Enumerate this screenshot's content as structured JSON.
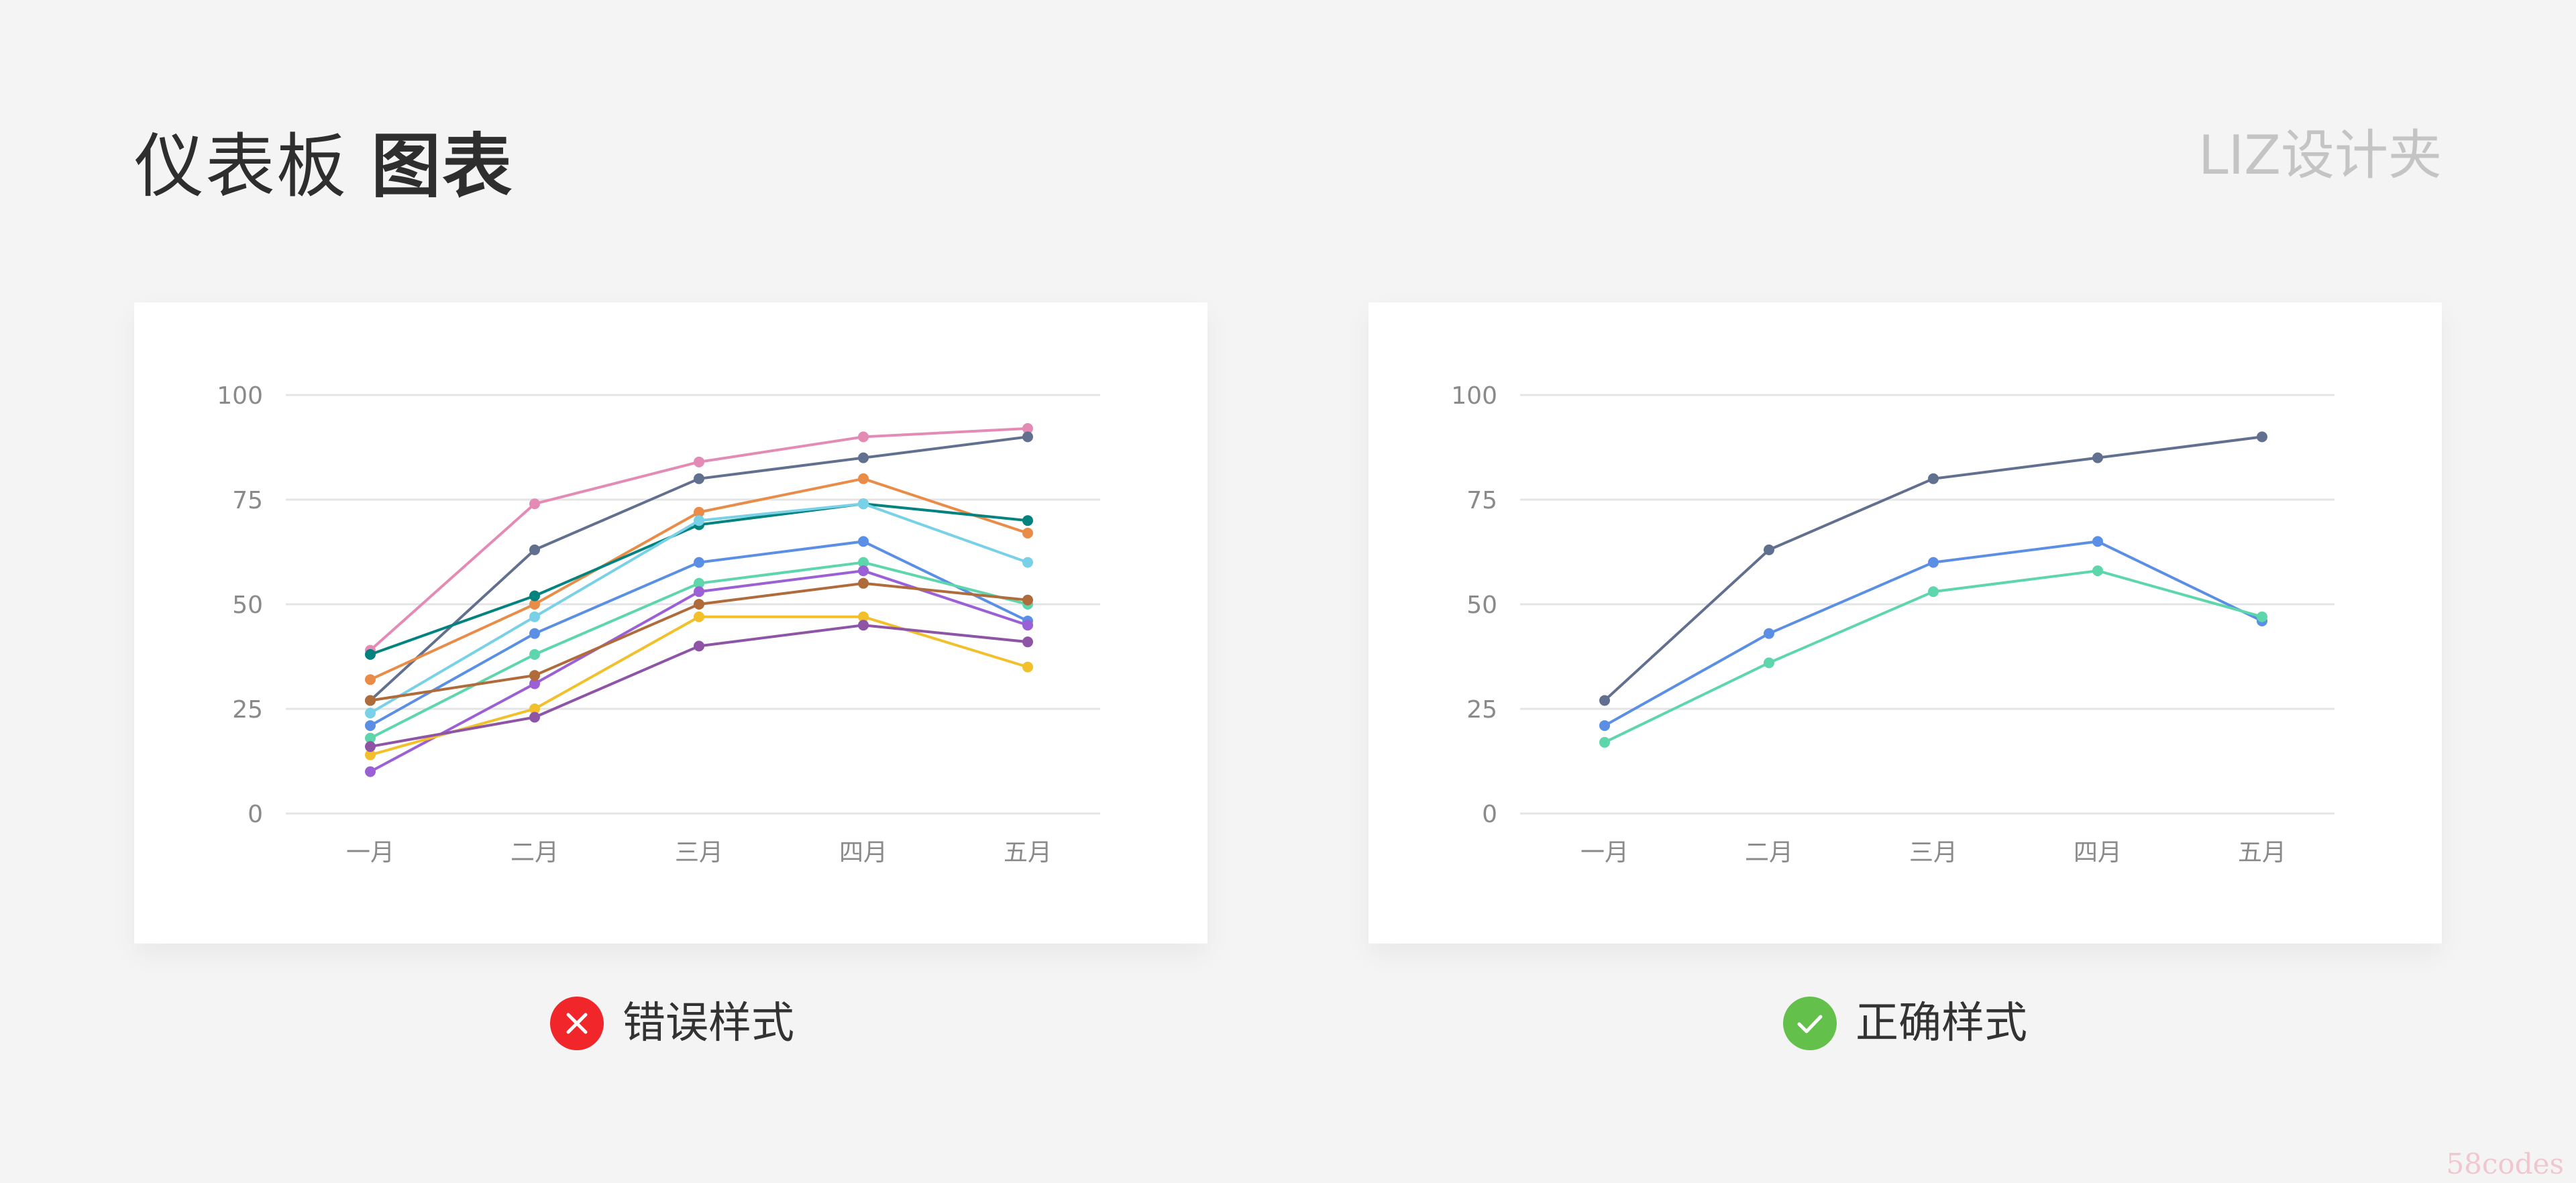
{
  "header": {
    "title_light": "仪表板",
    "title_bold": "图表",
    "brand": "LIZ设计夹"
  },
  "chart_data": [
    {
      "type": "line",
      "categories": [
        "一月",
        "二月",
        "三月",
        "四月",
        "五月"
      ],
      "ylim": [
        0,
        100
      ],
      "yticks": [
        "0",
        "25",
        "50",
        "75",
        "100"
      ],
      "grid": true,
      "series": [
        {
          "color": "#e48bb5",
          "values": [
            39,
            74,
            84,
            90,
            92
          ]
        },
        {
          "color": "#62708f",
          "values": [
            27,
            63,
            80,
            85,
            90
          ]
        },
        {
          "color": "#e98c48",
          "values": [
            32,
            50,
            72,
            80,
            67
          ]
        },
        {
          "color": "#02837f",
          "values": [
            38,
            52,
            69,
            74,
            70
          ]
        },
        {
          "color": "#78d1e6",
          "values": [
            24,
            47,
            70,
            74,
            60
          ]
        },
        {
          "color": "#5b8fe6",
          "values": [
            21,
            43,
            60,
            65,
            46
          ]
        },
        {
          "color": "#5dd6ab",
          "values": [
            18,
            38,
            55,
            60,
            50
          ]
        },
        {
          "color": "#9b5fd6",
          "values": [
            10,
            31,
            53,
            58,
            45
          ]
        },
        {
          "color": "#b06b3a",
          "values": [
            27,
            33,
            50,
            55,
            51
          ]
        },
        {
          "color": "#f1c02b",
          "values": [
            14,
            25,
            47,
            47,
            35
          ]
        },
        {
          "color": "#8e54a6",
          "values": [
            16,
            23,
            40,
            45,
            41
          ]
        }
      ]
    },
    {
      "type": "line",
      "categories": [
        "一月",
        "二月",
        "三月",
        "四月",
        "五月"
      ],
      "ylim": [
        0,
        100
      ],
      "yticks": [
        "0",
        "25",
        "50",
        "75",
        "100"
      ],
      "grid": true,
      "series": [
        {
          "color": "#62708f",
          "values": [
            27,
            63,
            80,
            85,
            90
          ]
        },
        {
          "color": "#5b8fe6",
          "values": [
            21,
            43,
            60,
            65,
            46
          ]
        },
        {
          "color": "#5dd6ab",
          "values": [
            17,
            36,
            53,
            58,
            47
          ]
        }
      ]
    }
  ],
  "captions": {
    "wrong": {
      "label": "错误样式",
      "icon": "close-icon",
      "color": "#f0262b"
    },
    "right": {
      "label": "正确样式",
      "icon": "check-icon",
      "color": "#62c04b"
    }
  },
  "watermark": "58codes"
}
